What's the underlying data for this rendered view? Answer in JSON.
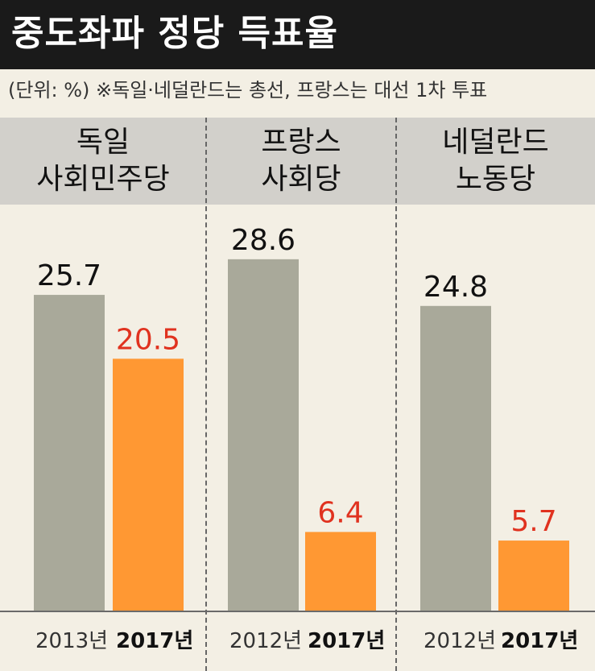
{
  "title": "중도좌파 정당 득표율",
  "unit_note": "(단위: %)  ※독일·네덜란드는 총선, 프랑스는 대선 1차 투표",
  "colors": {
    "past_bar": "#a9a99a",
    "recent_bar": "#ff9833",
    "recent_value_text": "#e0321f",
    "past_value_text": "#111111"
  },
  "chart_data": {
    "type": "bar",
    "title": "중도좌파 정당 득표율",
    "unit": "%",
    "groups": [
      {
        "name_lines": [
          "독일",
          "사회민주당"
        ],
        "bars": [
          {
            "year_label": "2013년",
            "value": 25.7,
            "value_label": "25.7",
            "kind": "past"
          },
          {
            "year_label": "2017년",
            "value": 20.5,
            "value_label": "20.5",
            "kind": "recent"
          }
        ]
      },
      {
        "name_lines": [
          "프랑스",
          "사회당"
        ],
        "bars": [
          {
            "year_label": "2012년",
            "value": 28.6,
            "value_label": "28.6",
            "kind": "past"
          },
          {
            "year_label": "2017년",
            "value": 6.4,
            "value_label": "6.4",
            "kind": "recent"
          }
        ]
      },
      {
        "name_lines": [
          "네덜란드",
          "노동당"
        ],
        "bars": [
          {
            "year_label": "2012년",
            "value": 24.8,
            "value_label": "24.8",
            "kind": "past"
          },
          {
            "year_label": "2017년",
            "value": 5.7,
            "value_label": "5.7",
            "kind": "recent"
          }
        ]
      }
    ]
  }
}
